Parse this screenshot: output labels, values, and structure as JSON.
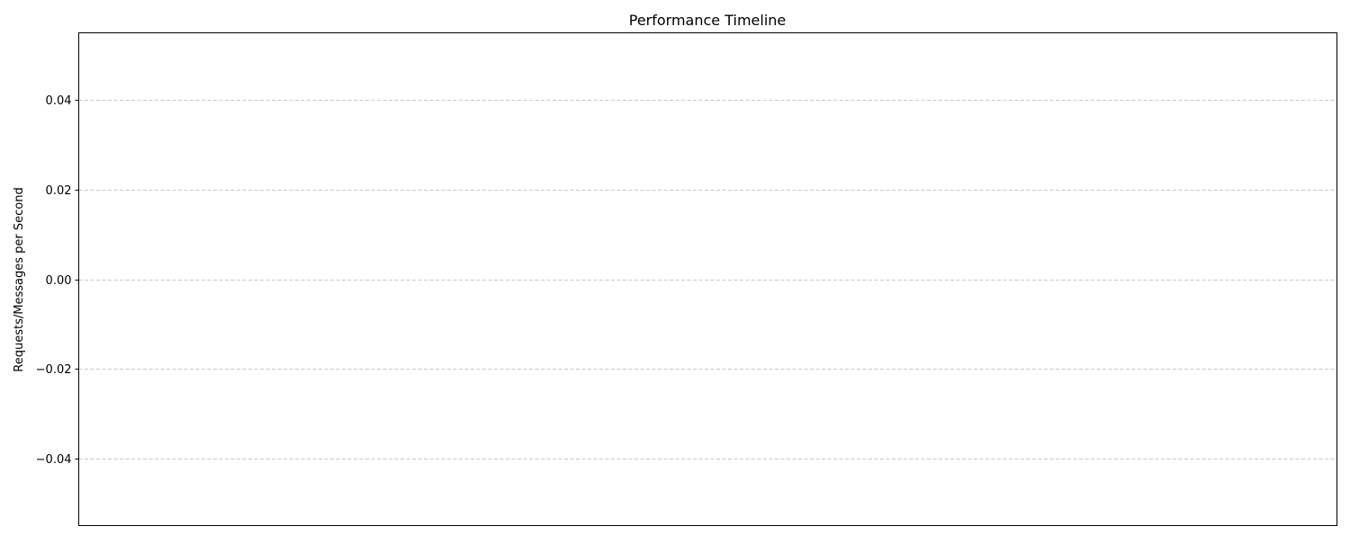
{
  "chart_data": {
    "type": "line",
    "title": "Performance Timeline",
    "xlabel": "",
    "ylabel": "Requests/Messages per Second",
    "ylim": [
      -0.055,
      0.055
    ],
    "yticks": [
      0.04,
      0.02,
      0.0,
      -0.02,
      -0.04
    ],
    "ytick_labels": [
      "0.04",
      "0.02",
      "0.00",
      "−0.02",
      "−0.04"
    ],
    "xticks": [],
    "series": [],
    "grid": {
      "y": true,
      "x": false,
      "style": "dashed",
      "color": "#c8c8c8"
    },
    "legend": "none"
  }
}
